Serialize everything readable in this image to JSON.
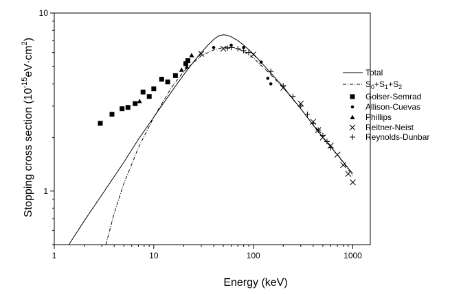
{
  "chart_data": {
    "type": "scatter",
    "title": "",
    "xlabel": "Energy (keV)",
    "ylabel": "Stopping cross section (10",
    "ylabel_exp": "-15",
    "ylabel_unit": "eV·cm",
    "ylabel_sq": "2",
    "ylabel_close": ")",
    "xscale": "log",
    "yscale": "log",
    "xlim": [
      1,
      1500
    ],
    "ylim": [
      0.5,
      10
    ],
    "xticks": [
      {
        "value": 1,
        "label": "1"
      },
      {
        "value": 10,
        "label": "10"
      },
      {
        "value": 100,
        "label": "100"
      },
      {
        "value": 1000,
        "label": "1000"
      }
    ],
    "yticks": [
      {
        "value": 1,
        "label": "1"
      },
      {
        "value": 10,
        "label": "10"
      }
    ],
    "legend_position": "right",
    "lines": [
      {
        "name": "Total",
        "style": "solid",
        "points": [
          [
            1.4,
            0.5
          ],
          [
            2,
            0.68
          ],
          [
            3,
            0.95
          ],
          [
            5,
            1.45
          ],
          [
            7,
            1.95
          ],
          [
            10,
            2.6
          ],
          [
            15,
            3.6
          ],
          [
            20,
            4.5
          ],
          [
            25,
            5.3
          ],
          [
            30,
            6.0
          ],
          [
            35,
            6.6
          ],
          [
            40,
            7.1
          ],
          [
            45,
            7.45
          ],
          [
            50,
            7.55
          ],
          [
            55,
            7.5
          ],
          [
            60,
            7.35
          ],
          [
            70,
            7.0
          ],
          [
            80,
            6.6
          ],
          [
            100,
            5.9
          ],
          [
            150,
            4.6
          ],
          [
            200,
            3.85
          ],
          [
            300,
            2.9
          ],
          [
            400,
            2.35
          ],
          [
            500,
            2.0
          ],
          [
            700,
            1.6
          ],
          [
            1000,
            1.25
          ]
        ]
      },
      {
        "name": "S",
        "name_parts": [
          "S",
          "0",
          "+S",
          "1",
          "+S",
          "2"
        ],
        "style": "dashdot",
        "points": [
          [
            3.3,
            0.5
          ],
          [
            4,
            0.75
          ],
          [
            5,
            1.1
          ],
          [
            7,
            1.75
          ],
          [
            10,
            2.6
          ],
          [
            15,
            3.8
          ],
          [
            20,
            4.7
          ],
          [
            30,
            5.75
          ],
          [
            40,
            6.2
          ],
          [
            50,
            6.4
          ],
          [
            60,
            6.45
          ],
          [
            70,
            6.3
          ],
          [
            80,
            6.1
          ],
          [
            100,
            5.6
          ],
          [
            150,
            4.5
          ],
          [
            200,
            3.8
          ],
          [
            300,
            2.9
          ],
          [
            400,
            2.35
          ],
          [
            500,
            2.0
          ],
          [
            700,
            1.6
          ],
          [
            1000,
            1.22
          ]
        ]
      }
    ],
    "series": [
      {
        "name": "Golser-Semrad",
        "marker": "square",
        "points": [
          [
            2.9,
            2.4
          ],
          [
            3.8,
            2.7
          ],
          [
            4.8,
            2.9
          ],
          [
            5.5,
            2.95
          ],
          [
            6.5,
            3.1
          ],
          [
            7.8,
            3.6
          ],
          [
            9.0,
            3.4
          ],
          [
            10.0,
            3.75
          ],
          [
            12.0,
            4.25
          ],
          [
            13.8,
            4.1
          ],
          [
            16.5,
            4.45
          ],
          [
            21.0,
            5.2
          ],
          [
            22.0,
            5.4
          ]
        ]
      },
      {
        "name": "Allison-Cuevas",
        "marker": "circle",
        "points": [
          [
            40,
            6.4
          ],
          [
            60,
            6.6
          ],
          [
            80,
            6.4
          ],
          [
            120,
            5.3
          ],
          [
            140,
            4.3
          ],
          [
            150,
            4.0
          ]
        ]
      },
      {
        "name": "Phillips",
        "marker": "triangle",
        "points": [
          [
            7.2,
            3.2
          ],
          [
            19.0,
            4.8
          ],
          [
            21.5,
            5.0
          ],
          [
            24.0,
            5.8
          ]
        ]
      },
      {
        "name": "Reitner-Neist",
        "marker": "x",
        "points": [
          [
            30,
            5.9
          ],
          [
            50,
            6.3
          ],
          [
            100,
            5.85
          ],
          [
            200,
            3.8
          ],
          [
            300,
            3.1
          ],
          [
            400,
            2.45
          ],
          [
            450,
            2.2
          ],
          [
            500,
            2.0
          ],
          [
            600,
            1.8
          ],
          [
            700,
            1.6
          ],
          [
            800,
            1.4
          ],
          [
            900,
            1.25
          ],
          [
            1000,
            1.12
          ]
        ]
      },
      {
        "name": "Reynolds-Dunbar",
        "marker": "plus",
        "points": [
          [
            55,
            6.35
          ],
          [
            60,
            6.4
          ],
          [
            70,
            6.3
          ],
          [
            80,
            6.15
          ],
          [
            90,
            6.0
          ],
          [
            150,
            4.7
          ],
          [
            200,
            3.9
          ],
          [
            250,
            3.4
          ],
          [
            300,
            3.0
          ],
          [
            350,
            2.7
          ],
          [
            400,
            2.4
          ],
          [
            450,
            2.2
          ],
          [
            500,
            2.05
          ],
          [
            550,
            1.9
          ],
          [
            600,
            1.75
          ]
        ]
      }
    ]
  }
}
